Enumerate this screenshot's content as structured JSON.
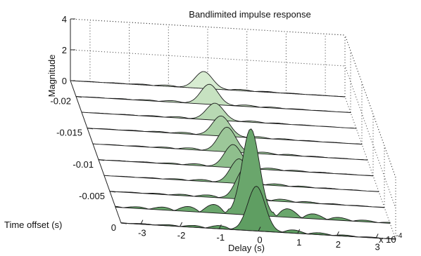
{
  "chart_data": {
    "type": "area",
    "title": "Bandlimited impulse response",
    "xlabel": "Delay (s)",
    "ylabel": "Time offset (s)",
    "zlabel": "Magnitude",
    "x_exponent_label": "x 10",
    "x_exponent_power": "-4",
    "xlim": [
      -0.00035,
      0.00035
    ],
    "ylim": [
      0,
      -0.0225
    ],
    "zlim": [
      0,
      4
    ],
    "x_ticks": [
      -3,
      -2,
      -1,
      0,
      1,
      2,
      3
    ],
    "x_tick_labels": [
      "-3",
      "-2",
      "-1",
      "0",
      "1",
      "2",
      "3"
    ],
    "y_ticks": [
      0,
      -0.005,
      -0.01,
      -0.015,
      -0.02
    ],
    "y_tick_labels": [
      "0",
      "-0.005",
      "-0.01",
      "-0.015",
      "-0.02"
    ],
    "z_ticks": [
      0,
      2,
      4
    ],
    "z_tick_labels": [
      "0",
      "2",
      "4"
    ],
    "grid": true,
    "series": [
      {
        "time_offset": 0,
        "peak_delay": -5e-06,
        "peak_magnitude": 2.9,
        "color": "#5f9e62"
      },
      {
        "time_offset": -0.0025,
        "peak_delay": -5e-06,
        "peak_magnitude": 5.6,
        "color": "#6aa66c"
      },
      {
        "time_offset": -0.005,
        "peak_delay": -6e-06,
        "peak_magnitude": 2.0,
        "color": "#76ae77"
      },
      {
        "time_offset": -0.0075,
        "peak_delay": -6e-06,
        "peak_magnitude": 1.6,
        "color": "#82b782"
      },
      {
        "time_offset": -0.01,
        "peak_delay": -7e-06,
        "peak_magnitude": 1.5,
        "color": "#8fbf8d"
      },
      {
        "time_offset": -0.0125,
        "peak_delay": -8e-06,
        "peak_magnitude": 1.6,
        "color": "#9cc799"
      },
      {
        "time_offset": -0.015,
        "peak_delay": -9e-06,
        "peak_magnitude": 1.3,
        "color": "#aad0a6"
      },
      {
        "time_offset": -0.0175,
        "peak_delay": -1e-05,
        "peak_magnitude": 1.1,
        "color": "#b8d9b3"
      },
      {
        "time_offset": -0.02,
        "peak_delay": -1e-05,
        "peak_magnitude": 1.3,
        "color": "#c7e2c1"
      },
      {
        "time_offset": -0.0225,
        "peak_delay": -1e-05,
        "peak_magnitude": 1.1,
        "color": "#d7ecd1"
      }
    ]
  }
}
